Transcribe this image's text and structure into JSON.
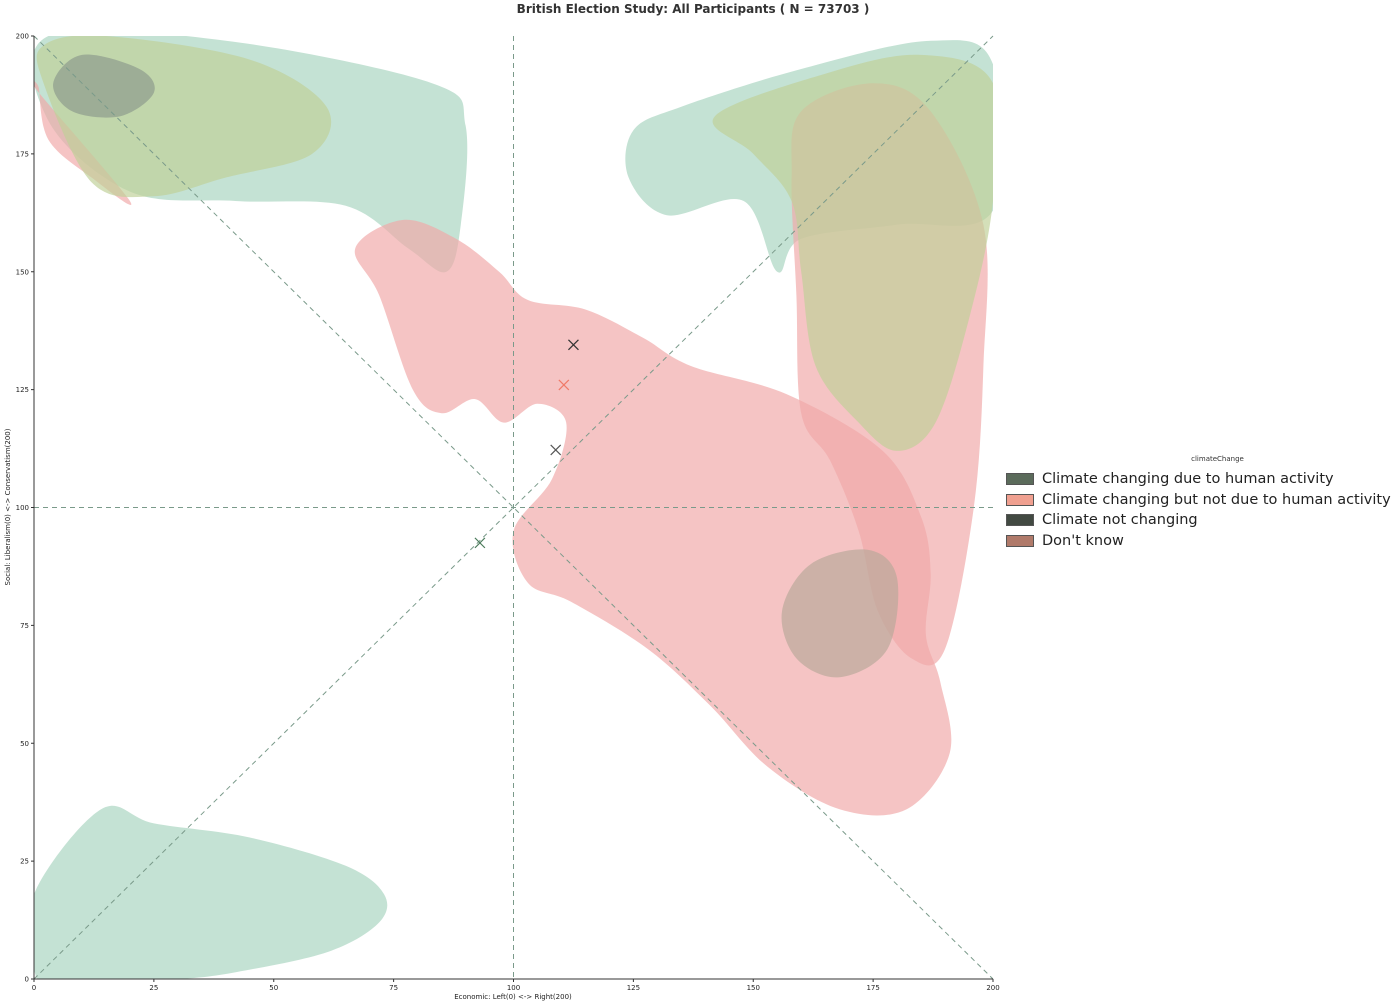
{
  "chart_data": {
    "type": "scatter",
    "title": "British Election Study: All Participants ( N = 73703 )",
    "xlabel": "Economic: Left(0) <-> Right(200)",
    "ylabel": "Social: Liberalism(0) <-> Conservatism(200)",
    "xlim": [
      0,
      200
    ],
    "ylim": [
      0,
      200
    ],
    "xticks": [
      0,
      25,
      50,
      75,
      100,
      125,
      150,
      175,
      200
    ],
    "yticks": [
      0,
      25,
      50,
      75,
      100,
      125,
      150,
      175,
      200
    ],
    "grid": false,
    "reference_lines": [
      "x = 100",
      "y = 100",
      "y = x",
      "y = 200 - x"
    ],
    "legend": {
      "title": "climateChange",
      "position": "right",
      "entries": [
        {
          "label": "Climate changing due to human activity",
          "color": "#5b6b5b"
        },
        {
          "label": "Climate changing but not due to human activity",
          "color": "#f0a090"
        },
        {
          "label": "Climate not changing",
          "color": "#424a42"
        },
        {
          "label": "Don't know",
          "color": "#b07a6a"
        }
      ]
    },
    "regions": [
      {
        "group": "Climate changing due to human activity",
        "color": "#a8d4c0",
        "points": [
          [
            0,
            2
          ],
          [
            0,
            18
          ],
          [
            14,
            36
          ],
          [
            25,
            33
          ],
          [
            45,
            30
          ],
          [
            65,
            24
          ],
          [
            73,
            18
          ],
          [
            72,
            12
          ],
          [
            62,
            6
          ],
          [
            45,
            2
          ],
          [
            30,
            0
          ],
          [
            5,
            0
          ]
        ]
      },
      {
        "group": "Climate changing due to human activity",
        "color": "#a8d4c0",
        "points": [
          [
            3,
            200
          ],
          [
            40,
            199
          ],
          [
            83,
            190
          ],
          [
            90,
            181
          ],
          [
            89,
            160
          ],
          [
            86,
            150
          ],
          [
            78,
            155
          ],
          [
            65,
            164
          ],
          [
            42,
            165
          ],
          [
            20,
            167
          ],
          [
            3,
            182
          ]
        ]
      },
      {
        "group": "Climate changing due to human activity",
        "color": "#a8d4c0",
        "points": [
          [
            125,
            180
          ],
          [
            135,
            185
          ],
          [
            160,
            193
          ],
          [
            187,
            199
          ],
          [
            200,
            194
          ],
          [
            200,
            163
          ],
          [
            180,
            160
          ],
          [
            160,
            157
          ],
          [
            155,
            150
          ],
          [
            148,
            165
          ],
          [
            132,
            162
          ],
          [
            124,
            170
          ]
        ]
      },
      {
        "group": "Climate changing but not due to human activity",
        "color": "#f0a8a8",
        "points": [
          [
            67,
            155
          ],
          [
            77,
            161
          ],
          [
            88,
            157
          ],
          [
            97,
            150
          ],
          [
            103,
            144
          ],
          [
            115,
            142
          ],
          [
            127,
            136
          ],
          [
            137,
            130
          ],
          [
            157,
            124
          ],
          [
            177,
            112
          ],
          [
            185,
            98
          ],
          [
            187,
            86
          ],
          [
            186,
            73
          ],
          [
            189,
            63
          ],
          [
            191,
            48
          ],
          [
            182,
            36
          ],
          [
            168,
            36
          ],
          [
            153,
            45
          ],
          [
            141,
            58
          ],
          [
            128,
            70
          ],
          [
            112,
            80
          ],
          [
            103,
            84
          ],
          [
            100,
            95
          ],
          [
            108,
            106
          ],
          [
            111,
            118
          ],
          [
            105,
            122
          ],
          [
            98,
            118
          ],
          [
            92,
            123
          ],
          [
            85,
            120
          ],
          [
            79,
            125
          ],
          [
            72,
            145
          ]
        ]
      },
      {
        "group": "Climate changing but not due to human activity",
        "color": "#f0a8a8",
        "points": [
          [
            1,
            189
          ],
          [
            3,
            178
          ],
          [
            12,
            170
          ],
          [
            20,
            165
          ],
          [
            1,
            188
          ]
        ]
      },
      {
        "group": "Climate changing but not due to human activity",
        "color": "#f0a8a8",
        "points": [
          [
            160,
            184
          ],
          [
            175,
            190
          ],
          [
            187,
            184
          ],
          [
            198,
            160
          ],
          [
            198,
            130
          ],
          [
            196,
            100
          ],
          [
            190,
            70
          ],
          [
            183,
            68
          ],
          [
            176,
            78
          ],
          [
            172,
            95
          ],
          [
            166,
            110
          ],
          [
            160,
            120
          ],
          [
            159,
            145
          ],
          [
            158,
            170
          ]
        ]
      },
      {
        "group": "Don't know",
        "color": "#c0d098",
        "points": [
          [
            2,
            198
          ],
          [
            15,
            200
          ],
          [
            45,
            195
          ],
          [
            61,
            185
          ],
          [
            58,
            175
          ],
          [
            40,
            170
          ],
          [
            25,
            166
          ],
          [
            12,
            169
          ],
          [
            2,
            190
          ]
        ]
      },
      {
        "group": "Don't know",
        "color": "#c0d098",
        "points": [
          [
            142,
            183
          ],
          [
            165,
            192
          ],
          [
            185,
            196
          ],
          [
            200,
            190
          ],
          [
            200,
            165
          ],
          [
            195,
            140
          ],
          [
            188,
            118
          ],
          [
            180,
            112
          ],
          [
            172,
            118
          ],
          [
            163,
            130
          ],
          [
            160,
            150
          ],
          [
            158,
            165
          ],
          [
            150,
            175
          ]
        ]
      },
      {
        "group": "Climate not changing",
        "color": "#8c9a8c",
        "points": [
          [
            4,
            190
          ],
          [
            10,
            196
          ],
          [
            22,
            193
          ],
          [
            25,
            188
          ],
          [
            18,
            183
          ],
          [
            8,
            184
          ]
        ]
      },
      {
        "group": "Climate not changing",
        "color": "#b8a89a",
        "points": [
          [
            156,
            78
          ],
          [
            162,
            88
          ],
          [
            174,
            91
          ],
          [
            180,
            85
          ],
          [
            178,
            70
          ],
          [
            168,
            64
          ],
          [
            159,
            68
          ]
        ]
      }
    ],
    "series": [
      {
        "name": "Climate changing due to human activity",
        "color": "#333333",
        "x": [
          112.5
        ],
        "y": [
          134.5
        ]
      },
      {
        "name": "Climate changing but not due to human activity",
        "color": "#f07a68",
        "x": [
          110.5
        ],
        "y": [
          126.0
        ]
      },
      {
        "name": "Climate not changing",
        "color": "#555555",
        "x": [
          108.8
        ],
        "y": [
          112.2
        ]
      },
      {
        "name": "Don't know",
        "color": "#4a7a5a",
        "x": [
          93.0
        ],
        "y": [
          92.5
        ]
      }
    ]
  }
}
